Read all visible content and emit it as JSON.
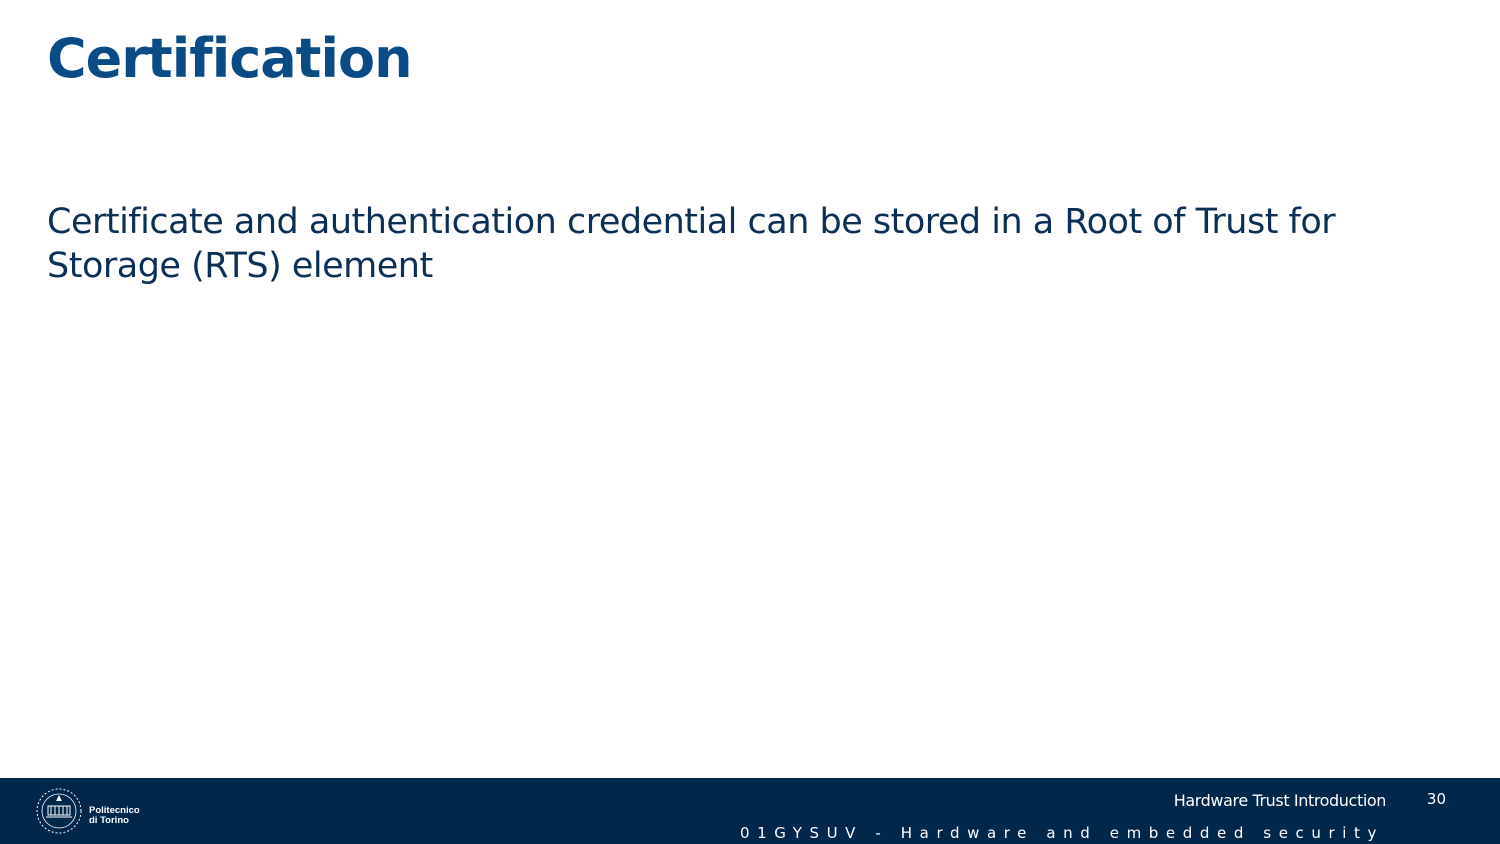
{
  "slide": {
    "title": "Certification",
    "body": "Certificate and authentication credential can be stored in a Root of Trust for Storage (RTS) element"
  },
  "footer": {
    "logo": {
      "line1": "Politecnico",
      "line2": "di Torino"
    },
    "section_title": "Hardware Trust Introduction",
    "page_number": "30",
    "course": "01GYSUV - Hardware and embedded security"
  },
  "colors": {
    "title": "#0a4a85",
    "body_text": "#0c2f55",
    "footer_background": "#00284b"
  }
}
